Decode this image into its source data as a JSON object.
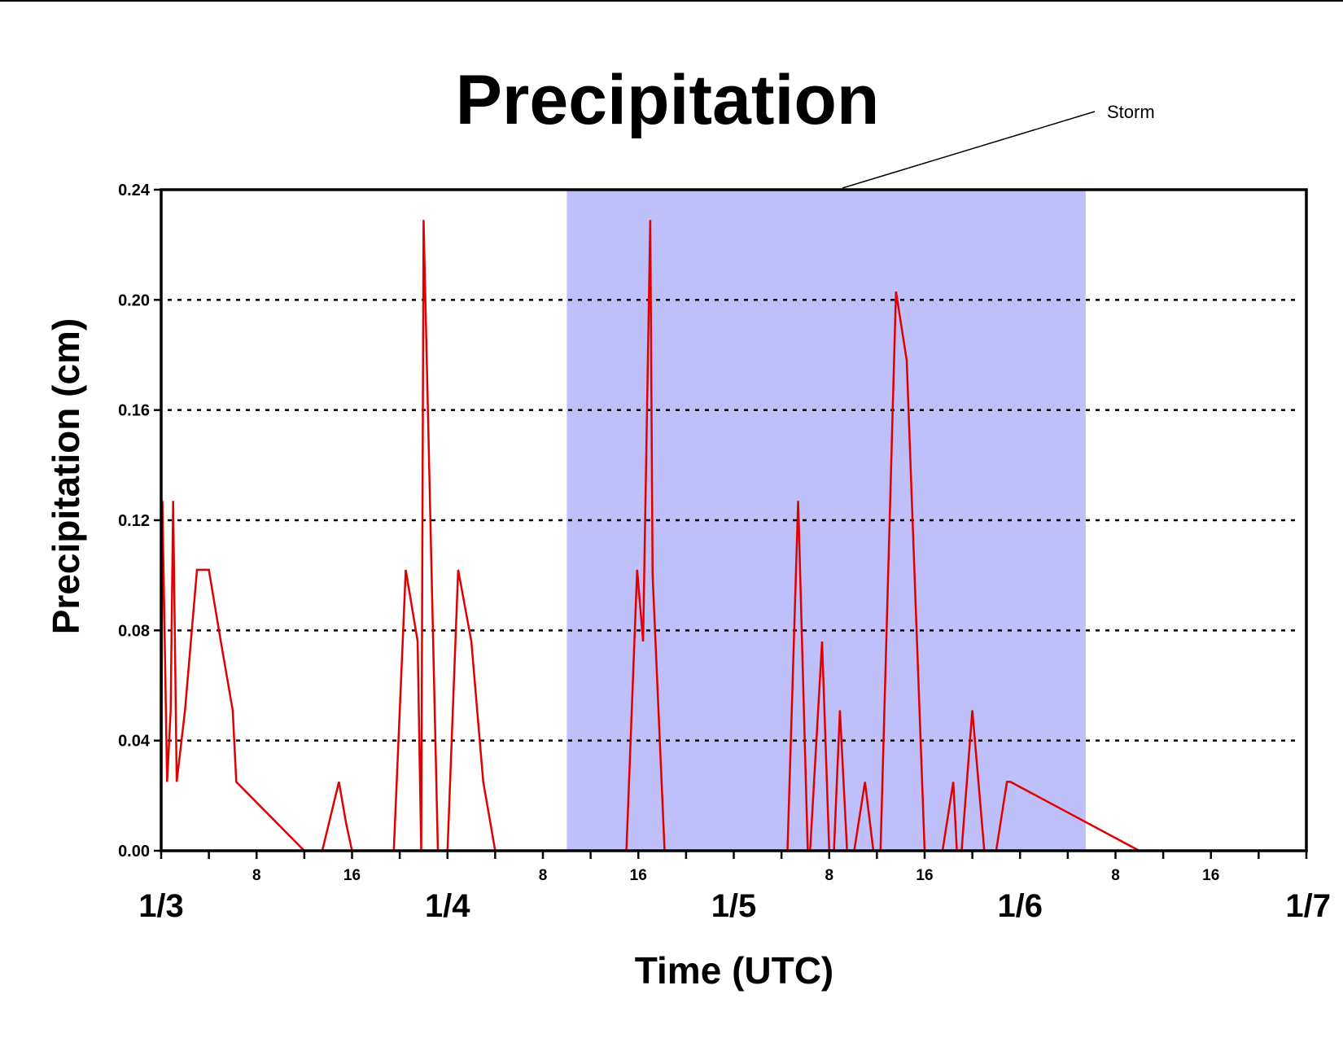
{
  "chart_data": {
    "type": "line",
    "title": "Precipitation",
    "xlabel": "Time (UTC)",
    "ylabel": "Precipitation (cm)",
    "x_unit": "hours",
    "xlim": [
      0,
      96
    ],
    "ylim": [
      0,
      0.24
    ],
    "y_ticks": [
      "0.00",
      "0.04",
      "0.08",
      "0.12",
      "0.16",
      "0.20",
      "0.24"
    ],
    "y_tick_values": [
      0,
      0.04,
      0.08,
      0.12,
      0.16,
      0.2,
      0.24
    ],
    "day_ticks": [
      {
        "x": 0,
        "label": "1/3"
      },
      {
        "x": 24,
        "label": "1/4"
      },
      {
        "x": 48,
        "label": "1/5"
      },
      {
        "x": 72,
        "label": "1/6"
      },
      {
        "x": 96,
        "label": "1/7"
      }
    ],
    "hour_ticks": [
      {
        "x": 8,
        "label": "8"
      },
      {
        "x": 16,
        "label": "16"
      },
      {
        "x": 32,
        "label": "8"
      },
      {
        "x": 40,
        "label": "16"
      },
      {
        "x": 56,
        "label": "8"
      },
      {
        "x": 64,
        "label": "16"
      },
      {
        "x": 80,
        "label": "8"
      },
      {
        "x": 88,
        "label": "16"
      }
    ],
    "minor_tick_step": 4,
    "grid": "horizontal dotted",
    "annotation": {
      "text": "Storm",
      "x_start": 34,
      "x_end": 77.5
    },
    "colors": {
      "series": "#e00000",
      "storm_shade": "#bfbffa",
      "axis": "#000000"
    },
    "series": [
      {
        "x": [
          0,
          0.1,
          0.5,
          0.8,
          1.0,
          1.3,
          2.0,
          3.0,
          4.0,
          5.0,
          6.0,
          6.3,
          12,
          13.5,
          14.9,
          15.5,
          16,
          16.5,
          19.5,
          20.5,
          21.5,
          21.8,
          22.0,
          23.2,
          24,
          24.9,
          26,
          27,
          28,
          29,
          33,
          38,
          39,
          39.9,
          40.4,
          41,
          41.2,
          42.2,
          52.5,
          53.4,
          54.2,
          54.4,
          55.4,
          56,
          56.4,
          56.9,
          57.5,
          58.1,
          59,
          59.7,
          60.3,
          61.6,
          62.5,
          64,
          65,
          65.5,
          66.4,
          66.7,
          67.1,
          68,
          69,
          70,
          70.9,
          71.2,
          82,
          82.5,
          83,
          84,
          84.4,
          85,
          86.5,
          88,
          88.5,
          88.7,
          88.9,
          89.2,
          96
        ],
        "y": [
          0,
          0.127,
          0.025,
          0.051,
          0.127,
          0.025,
          0.051,
          0.102,
          0.102,
          0.076,
          0.051,
          0.025,
          0,
          0,
          0.025,
          0.01,
          0,
          0,
          0,
          0.102,
          0.076,
          0,
          0.229,
          0,
          0,
          0.102,
          0.076,
          0.025,
          0,
          0,
          0,
          0,
          0,
          0.102,
          0.076,
          0.229,
          0.1,
          0,
          0,
          0.127,
          0,
          0,
          0.076,
          0,
          0,
          0.051,
          0,
          0,
          0.025,
          0,
          0,
          0.203,
          0.178,
          0,
          0,
          0,
          0.025,
          0,
          0,
          0.051,
          0,
          0,
          0.025,
          0.025,
          0,
          0,
          0,
          0,
          0,
          0,
          0,
          0,
          0,
          0,
          0,
          0,
          0
        ]
      }
    ]
  }
}
